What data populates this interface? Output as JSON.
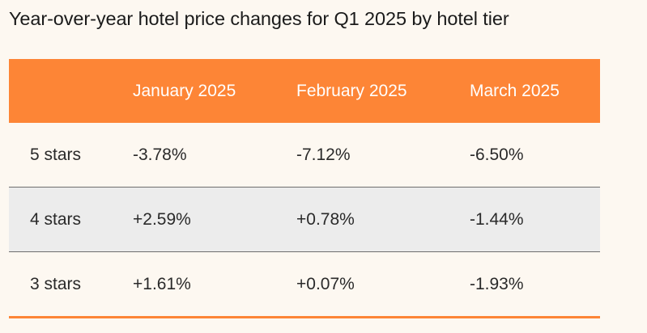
{
  "title": "Year-over-year hotel price changes for Q1 2025 by hotel tier",
  "colors": {
    "header_bg": "#fd8536",
    "header_text": "#ffffff",
    "shaded_row": "#ececec",
    "background": "#fdf8f1"
  },
  "chart_data": {
    "type": "table",
    "title": "Year-over-year hotel price changes for Q1 2025 by hotel tier",
    "columns": [
      "",
      "January 2025",
      "February 2025",
      "March 2025"
    ],
    "rows": [
      {
        "label": "5 stars",
        "values": [
          "-3.78%",
          "-7.12%",
          "-6.50%"
        ]
      },
      {
        "label": "4 stars",
        "values": [
          "+2.59%",
          "+0.78%",
          "-1.44%"
        ]
      },
      {
        "label": "3 stars",
        "values": [
          "+1.61%",
          "+0.07%",
          "-1.93%"
        ]
      }
    ]
  }
}
